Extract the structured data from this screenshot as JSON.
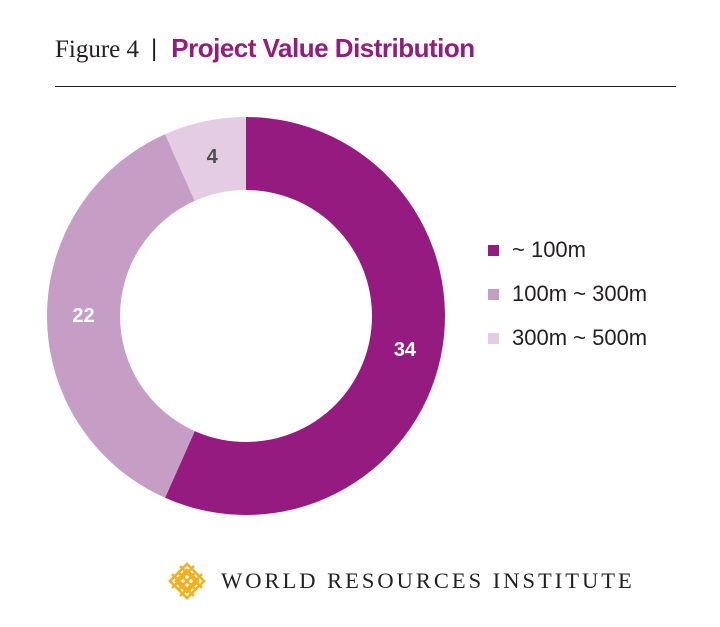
{
  "header": {
    "figure_label": "Figure 4",
    "separator": "|",
    "title": "Project Value Distribution"
  },
  "chart_data": {
    "type": "pie",
    "subtype": "donut",
    "categories": [
      "~ 100m",
      "100m ~ 300m",
      "300m ~ 500m"
    ],
    "values": [
      34,
      22,
      4
    ],
    "data_labels": [
      "34",
      "22",
      "4"
    ],
    "colors": [
      "#951b81",
      "#c69dc4",
      "#e4cde3"
    ],
    "label_colors": [
      "#ffffff",
      "#ffffff",
      "#4d4d4f"
    ],
    "legend_position": "right",
    "start_angle": "top",
    "direction": "clockwise"
  },
  "legend": {
    "items": [
      {
        "label": "~ 100m",
        "color": "#951b81"
      },
      {
        "label": "100m ~ 300m",
        "color": "#c69dc4"
      },
      {
        "label": "300m ~ 500m",
        "color": "#e4cde3"
      }
    ]
  },
  "footer": {
    "organization": "WORLD RESOURCES INSTITUTE",
    "logo_icon": "wri-knot-logo-icon",
    "logo_color": "#f2b01e"
  }
}
